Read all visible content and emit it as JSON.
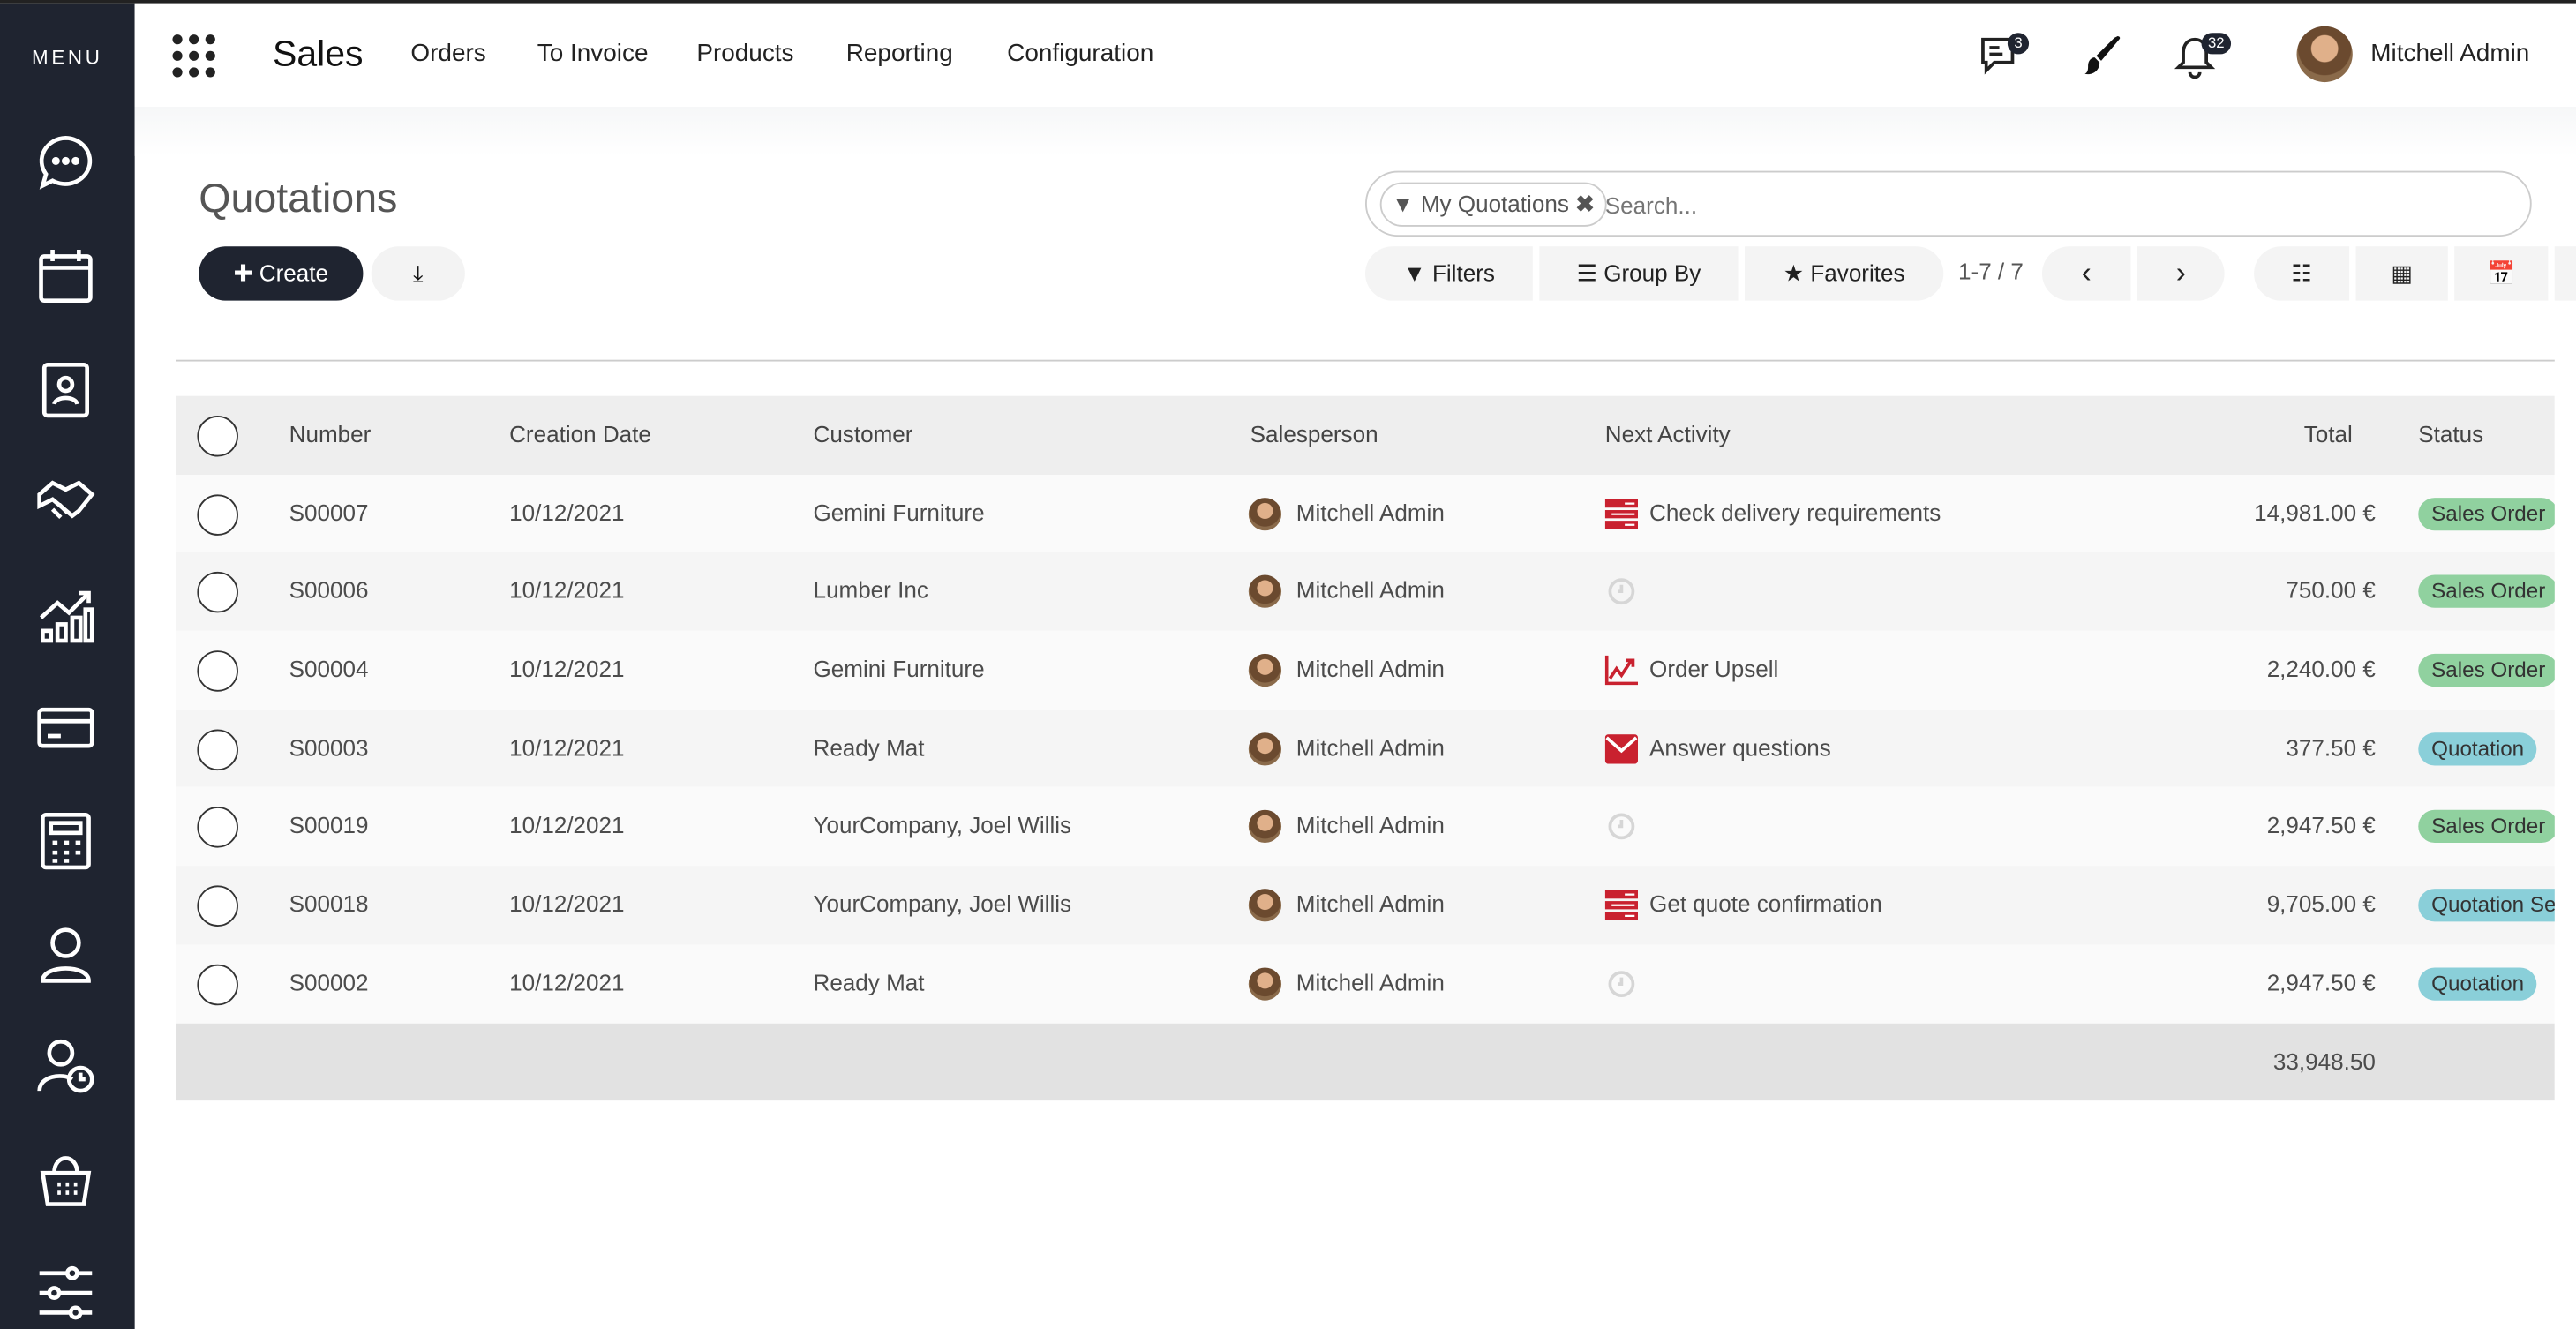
{
  "sidebar": {
    "menu_label": "MENU",
    "items": [
      "discuss-icon",
      "calendar-icon",
      "contacts-icon",
      "crm-handshake-icon",
      "sales-chart-icon",
      "invoicing-card-icon",
      "accounting-calculator-icon",
      "employees-icon",
      "time-off-icon",
      "point-of-sale-basket-icon",
      "settings-sliders-icon"
    ]
  },
  "navbar": {
    "app": "Sales",
    "menu": [
      "Orders",
      "To Invoice",
      "Products",
      "Reporting",
      "Configuration"
    ],
    "messages_count": "3",
    "activities_count": "32",
    "user": "Mitchell Admin"
  },
  "control_panel": {
    "title": "Quotations",
    "create_label": "Create",
    "search": {
      "facet": "My Quotations",
      "placeholder": "Search..."
    },
    "filters_label": "Filters",
    "groupby_label": "Group By",
    "favorites_label": "Favorites",
    "pager": "1-7 / 7"
  },
  "table": {
    "headers": {
      "number": "Number",
      "date": "Creation Date",
      "customer": "Customer",
      "salesperson": "Salesperson",
      "activity": "Next Activity",
      "total": "Total",
      "status": "Status"
    },
    "rows": [
      {
        "number": "S00007",
        "date": "10/12/2021",
        "customer": "Gemini Furniture",
        "salesperson": "Mitchell Admin",
        "activity": "Check delivery requirements",
        "activity_icon": "tasks",
        "total": "14,981.00 €",
        "status": "Sales Order",
        "status_type": "green"
      },
      {
        "number": "S00006",
        "date": "10/12/2021",
        "customer": "Lumber Inc",
        "salesperson": "Mitchell Admin",
        "activity": "",
        "activity_icon": "clock",
        "total": "750.00 €",
        "status": "Sales Order",
        "status_type": "green"
      },
      {
        "number": "S00004",
        "date": "10/12/2021",
        "customer": "Gemini Furniture",
        "salesperson": "Mitchell Admin",
        "activity": "Order Upsell",
        "activity_icon": "chart",
        "total": "2,240.00 €",
        "status": "Sales Order",
        "status_type": "green"
      },
      {
        "number": "S00003",
        "date": "10/12/2021",
        "customer": "Ready Mat",
        "salesperson": "Mitchell Admin",
        "activity": "Answer questions",
        "activity_icon": "envelope",
        "total": "377.50 €",
        "status": "Quotation",
        "status_type": "blue"
      },
      {
        "number": "S00019",
        "date": "10/12/2021",
        "customer": "YourCompany, Joel Willis",
        "salesperson": "Mitchell Admin",
        "activity": "",
        "activity_icon": "clock",
        "total": "2,947.50 €",
        "status": "Sales Order",
        "status_type": "green"
      },
      {
        "number": "S00018",
        "date": "10/12/2021",
        "customer": "YourCompany, Joel Willis",
        "salesperson": "Mitchell Admin",
        "activity": "Get quote confirmation",
        "activity_icon": "tasks",
        "total": "9,705.00 €",
        "status": "Quotation Sent",
        "status_type": "blue"
      },
      {
        "number": "S00002",
        "date": "10/12/2021",
        "customer": "Ready Mat",
        "salesperson": "Mitchell Admin",
        "activity": "",
        "activity_icon": "clock",
        "total": "2,947.50 €",
        "status": "Quotation",
        "status_type": "blue"
      }
    ],
    "footer_total": "33,948.50"
  },
  "colors": {
    "sidebar": "#1f2430",
    "status_green": "#90d19f",
    "status_blue": "#8acfd9",
    "activity_red": "#c9212f"
  }
}
